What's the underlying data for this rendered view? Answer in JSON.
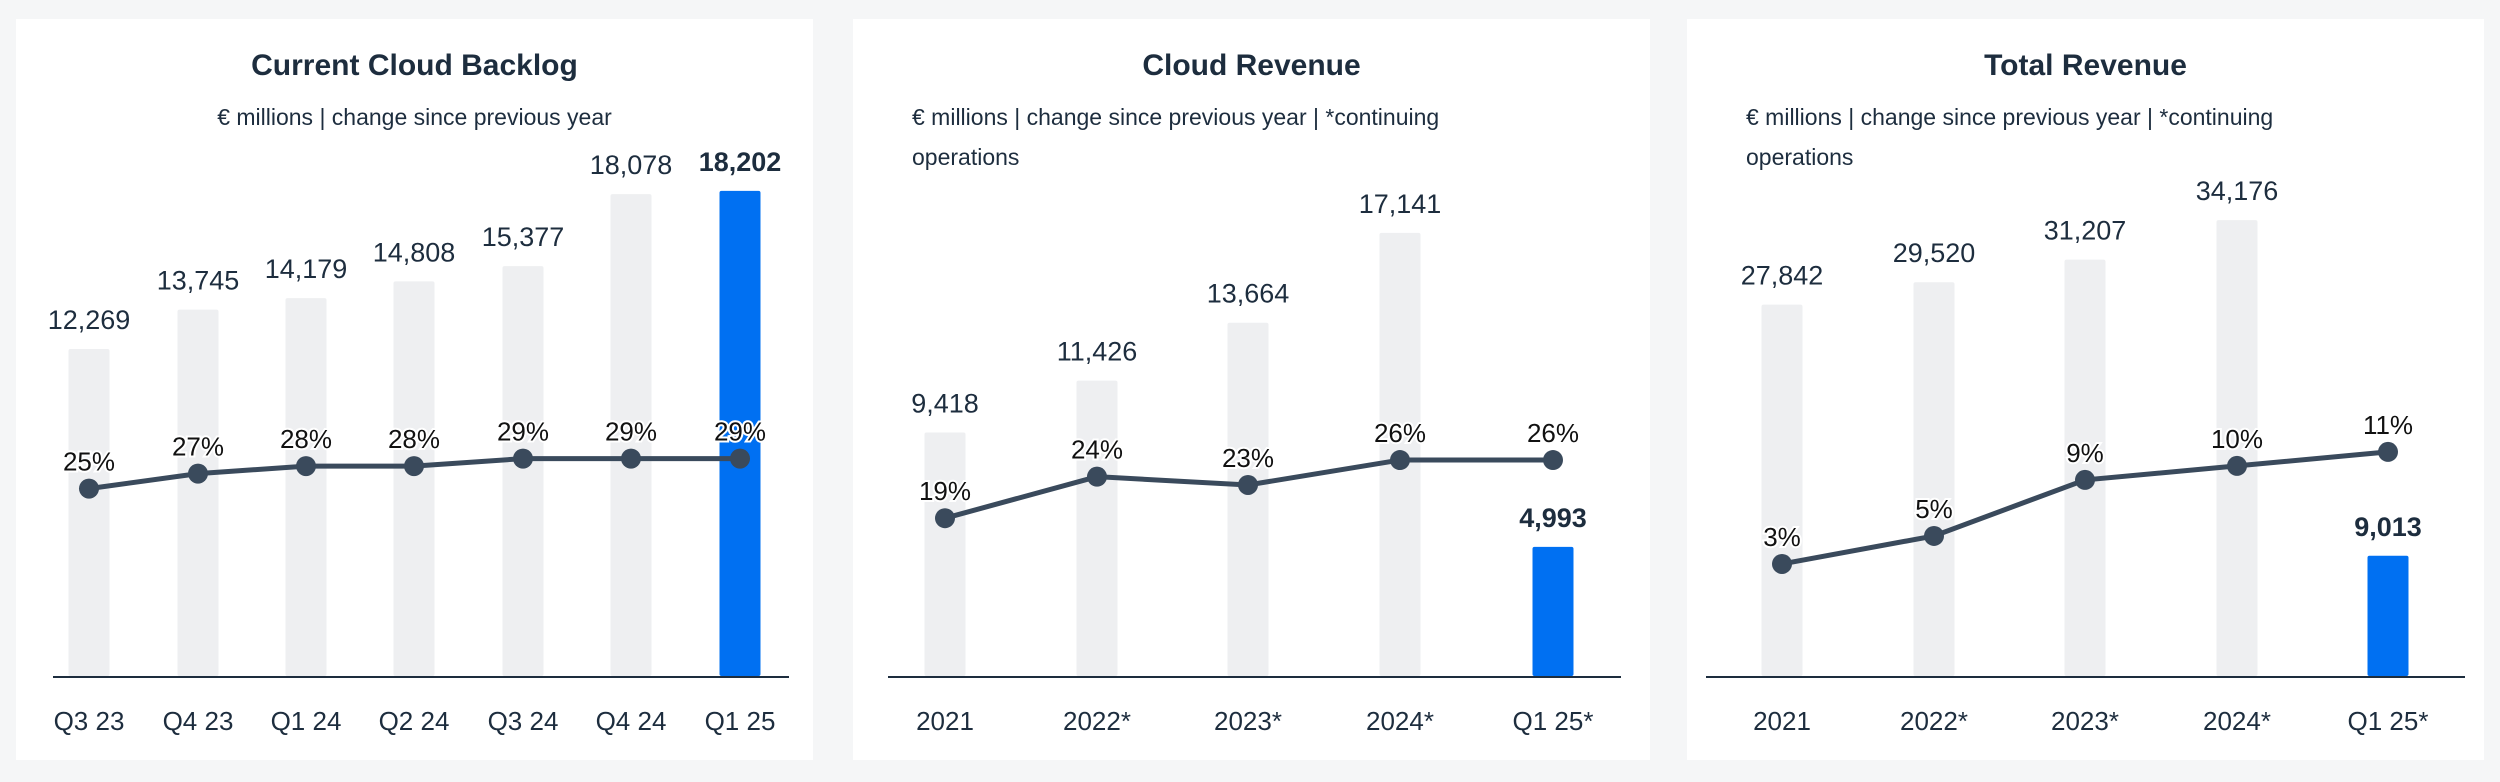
{
  "colors": {
    "background": "#f5f6f7",
    "panel": "#ffffff",
    "bar": "#eeeff1",
    "highlight_bar": "#0070f2",
    "line": "#3a4a5c",
    "text": "#1d2d3e"
  },
  "chart_data": [
    {
      "type": "bar",
      "title": "Current Cloud Backlog",
      "subtitle": "€ millions | change since previous year",
      "categories": [
        "Q3 23",
        "Q4 23",
        "Q1 24",
        "Q2 24",
        "Q3 24",
        "Q4 24",
        "Q1 25"
      ],
      "values": [
        12269,
        13745,
        14179,
        14808,
        15377,
        18078,
        18202
      ],
      "value_labels": [
        "12,269",
        "13,745",
        "14,179",
        "14,808",
        "15,377",
        "18,078",
        "18,202"
      ],
      "highlight_index": 6,
      "ylim": [
        0,
        18760
      ],
      "line_series": {
        "name": "change since previous year",
        "values": [
          25,
          27,
          28,
          28,
          29,
          29,
          29
        ],
        "labels": [
          "25%",
          "27%",
          "28%",
          "28%",
          "29%",
          "29%",
          "29%"
        ],
        "ylim": [
          0,
          66.7
        ]
      },
      "grid": false
    },
    {
      "type": "bar",
      "title": "Cloud Revenue",
      "subtitle": "€ millions | change since previous year | *continuing operations",
      "categories": [
        "2021",
        "2022*",
        "2023*",
        "2024*",
        "Q1 25*"
      ],
      "values": [
        9418,
        11426,
        13664,
        17141,
        4993
      ],
      "value_labels": [
        "9,418",
        "11,426",
        "13,664",
        "17,141",
        "4,993"
      ],
      "highlight_index": 4,
      "ylim": [
        0,
        19340
      ],
      "line_series": {
        "name": "change since previous year",
        "values": [
          19,
          24,
          23,
          26,
          26
        ],
        "labels": [
          "19%",
          "24%",
          "23%",
          "26%",
          "26%"
        ],
        "ylim": [
          0,
          60.2
        ]
      },
      "grid": false
    },
    {
      "type": "bar",
      "title": "Total Revenue",
      "subtitle": "€ millions | change since previous year | *continuing operations",
      "categories": [
        "2021",
        "2022*",
        "2023*",
        "2024*",
        "Q1 25*"
      ],
      "values": [
        27842,
        29520,
        31207,
        34176,
        9013
      ],
      "value_labels": [
        "27,842",
        "29,520",
        "31,207",
        "34,176",
        "9,013"
      ],
      "highlight_index": 4,
      "ylim": [
        0,
        37480
      ],
      "line_series": {
        "name": "change since previous year",
        "values": [
          3,
          5,
          9,
          10,
          11
        ],
        "labels": [
          "3%",
          "5%",
          "9%",
          "10%",
          "11%"
        ],
        "ylim": [
          -5,
          30.7
        ]
      },
      "grid": false
    }
  ]
}
